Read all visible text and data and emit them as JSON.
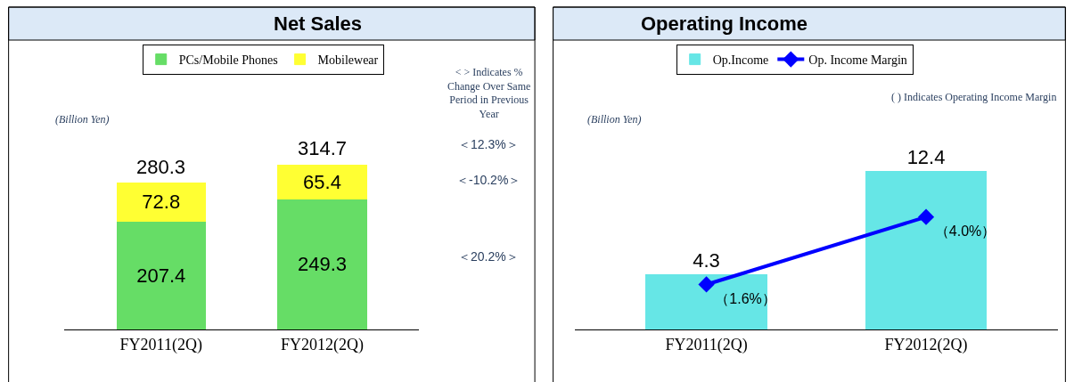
{
  "chart_data": [
    {
      "type": "bar",
      "title": "Net Sales",
      "categories": [
        "FY2011(2Q)",
        "FY2012(2Q)"
      ],
      "stacked": true,
      "data_labels": true,
      "totals": [
        "280.3",
        "314.7"
      ],
      "tick_labels": "x",
      "legend": "top",
      "series": [
        {
          "name": "PCs/Mobile Phones",
          "color": "#66dd66",
          "values": [
            207.4,
            249.3
          ]
        },
        {
          "name": "Mobilewear",
          "color": "#ffff33",
          "values": [
            72.8,
            65.4
          ]
        }
      ],
      "annotations": [
        "(Billion Yen)",
        "< > Indicates % Change Over Same Period in Previous Year",
        "＜12.3%＞",
        "＜-10.2%＞",
        "＜20.2%＞"
      ]
    },
    {
      "type": "bar",
      "title": "Operating Income",
      "categories": [
        "FY2011(2Q)",
        "FY2012(2Q)"
      ],
      "data_labels": true,
      "tick_labels": "x",
      "legend": "top",
      "series": [
        {
          "name": "Op.Income",
          "color": "#66e6e6",
          "values": [
            4.3,
            12.4
          ]
        },
        {
          "name": "Op. Income Margin",
          "color": "#0000ff",
          "type": "line",
          "axis": "y2",
          "marker": "diamond",
          "values": [
            1.6,
            4.0
          ],
          "value_labels": [
            "（1.6%）",
            "（4.0%）"
          ]
        }
      ],
      "annotations": [
        "(Billion Yen)",
        "( ) Indicates Operating Income Margin"
      ]
    }
  ]
}
